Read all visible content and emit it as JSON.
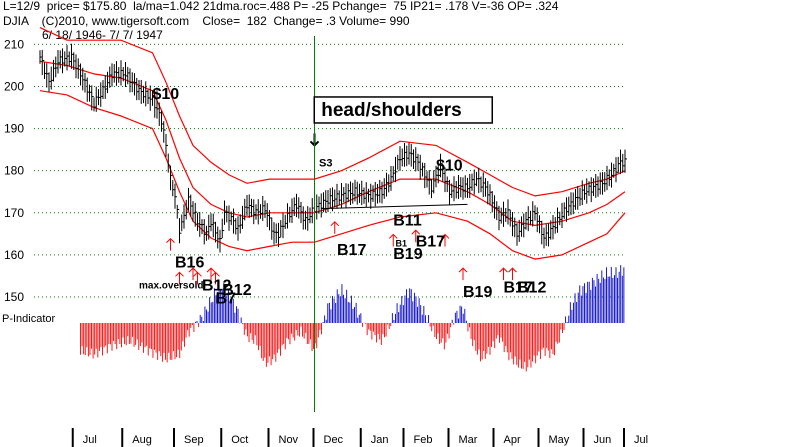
{
  "header": {
    "line1": "L=12/9  price= $175.80  la/ma=1.042 21dma.roc=.488 P= -25 Pchange=  75 IP21= .178 V=-36 OP= .324",
    "line2": "DJIA    (C)2010, www.tigersoft.com    Close=  182  Change= .3 Volume= 990",
    "line3": "6/ 18/ 1946- 7/ 7/ 1947"
  },
  "colors": {
    "price_bar": "#000000",
    "band": "#ff0000",
    "grid": "#008000",
    "marker_line": "#008000",
    "p_positive": "#0000cc",
    "p_negative": "#ff0000",
    "signal": "#000000",
    "buy_arrow": "#ff0000",
    "axis_tab": "#e8e8e8"
  },
  "chart_data": {
    "type": "line",
    "title": "DJIA",
    "x_range": [
      0,
      260
    ],
    "ylim": [
      145,
      212
    ],
    "y_ticks": [
      150,
      160,
      170,
      180,
      190,
      200,
      210
    ],
    "month_labels": [
      "Jul",
      "Aug",
      "Sep",
      "Oct",
      "Nov",
      "Dec",
      "Jan",
      "Feb",
      "Mar",
      "Apr",
      "May",
      "Jun",
      "Jul"
    ],
    "month_positions": [
      15,
      37,
      60,
      81,
      102,
      122,
      143,
      162,
      182,
      202,
      222,
      242,
      260
    ],
    "vline_x": 122,
    "series": [
      {
        "name": "DJIA close",
        "x": [
          0,
          4,
          8,
          14,
          18,
          24,
          28,
          32,
          38,
          44,
          50,
          54,
          56,
          58,
          60,
          62,
          64,
          66,
          70,
          74,
          76,
          80,
          82,
          86,
          88,
          92,
          96,
          100,
          104,
          106,
          110,
          114,
          118,
          122,
          128,
          134,
          140,
          146,
          152,
          156,
          160,
          164,
          168,
          170,
          174,
          178,
          182,
          186,
          190,
          194,
          198,
          200,
          204,
          208,
          212,
          216,
          220,
          224,
          226,
          230,
          234,
          238,
          242,
          246,
          250,
          254,
          258
        ],
        "values": [
          207,
          201,
          206,
          207,
          203,
          196,
          199,
          203,
          203,
          199,
          197,
          192,
          186,
          178,
          174,
          166,
          169,
          173,
          168,
          165,
          168,
          163,
          170,
          168,
          166,
          172,
          170,
          171,
          165,
          165,
          169,
          172,
          168,
          171,
          173,
          174,
          175,
          174,
          175,
          178,
          183,
          184,
          182,
          180,
          176,
          181,
          175,
          176,
          176,
          178,
          176,
          174,
          169,
          170,
          165,
          168,
          170,
          164,
          165,
          168,
          171,
          173,
          175,
          176,
          177,
          179,
          182
        ]
      },
      {
        "name": "upper band",
        "x": [
          0,
          12,
          24,
          36,
          50,
          56,
          62,
          68,
          76,
          84,
          92,
          102,
          112,
          122,
          134,
          146,
          160,
          176,
          190,
          200,
          210,
          220,
          232,
          244,
          252,
          260
        ],
        "values": [
          214,
          211,
          211,
          211,
          208,
          201,
          193,
          186,
          182,
          179,
          177,
          178,
          178,
          178,
          180,
          183,
          187,
          186,
          182,
          179,
          176,
          174,
          175,
          177,
          178,
          180
        ]
      },
      {
        "name": "moving average",
        "x": [
          0,
          12,
          24,
          36,
          50,
          56,
          62,
          68,
          76,
          84,
          92,
          102,
          112,
          122,
          134,
          146,
          160,
          176,
          190,
          200,
          210,
          220,
          232,
          244,
          252,
          260
        ],
        "values": [
          206,
          205,
          203,
          202,
          199,
          192,
          183,
          176,
          172,
          170,
          169,
          170,
          170,
          170,
          172,
          175,
          178,
          178,
          175,
          172,
          168,
          167,
          168,
          170,
          172,
          175
        ]
      },
      {
        "name": "lower band",
        "x": [
          0,
          12,
          24,
          36,
          50,
          56,
          62,
          68,
          76,
          84,
          92,
          102,
          112,
          122,
          134,
          146,
          160,
          176,
          190,
          200,
          210,
          220,
          232,
          244,
          252,
          260
        ],
        "values": [
          199,
          198,
          195,
          193,
          190,
          183,
          175,
          168,
          164,
          162,
          161,
          162,
          163,
          163,
          165,
          167,
          169,
          170,
          168,
          165,
          161,
          159,
          160,
          163,
          165,
          170
        ]
      }
    ],
    "neckline": {
      "x": [
        125,
        190
      ],
      "values": [
        171,
        172
      ]
    },
    "p_indicator": {
      "label": "P-Indicator",
      "x": [
        0,
        8,
        16,
        24,
        32,
        40,
        48,
        56,
        62,
        66,
        72,
        76,
        80,
        84,
        88,
        92,
        96,
        100,
        104,
        110,
        116,
        122,
        128,
        134,
        140,
        146,
        152,
        158,
        164,
        168,
        172,
        176,
        180,
        184,
        188,
        192,
        196,
        200,
        204,
        208,
        212,
        216,
        220,
        224,
        228,
        232,
        236,
        240,
        244,
        248,
        252,
        256,
        260
      ],
      "values": [
        -0.2,
        -0.5,
        -0.6,
        -0.7,
        -0.5,
        -0.4,
        -0.6,
        -0.8,
        -0.7,
        -0.2,
        0.1,
        0.4,
        0.7,
        0.5,
        0.2,
        -0.3,
        -0.4,
        -0.9,
        -0.8,
        -0.4,
        -0.2,
        -0.6,
        0.3,
        0.6,
        0.3,
        -0.2,
        -0.4,
        0.2,
        0.6,
        0.4,
        0.1,
        -0.3,
        -0.5,
        0.1,
        0.3,
        -0.4,
        -0.8,
        -0.6,
        -0.3,
        -0.7,
        -0.9,
        -1.0,
        -0.8,
        -0.6,
        -0.7,
        -0.2,
        0.3,
        0.6,
        0.7,
        0.8,
        0.9,
        0.9,
        1.0
      ]
    },
    "annotations": [
      {
        "text": "$10",
        "x": 50,
        "y": 197,
        "size": 16
      },
      {
        "text": "$10",
        "x": 176,
        "y": 180,
        "size": 16
      },
      {
        "text": "B16",
        "x": 60,
        "y": 157,
        "size": 16
      },
      {
        "text": "max.oversold",
        "x": 44,
        "y": 152,
        "size": 10
      },
      {
        "text": "B12",
        "x": 72,
        "y": 151.5,
        "size": 16
      },
      {
        "text": "B12",
        "x": 81,
        "y": 150.5,
        "size": 16
      },
      {
        "text": "B7",
        "x": 78,
        "y": 148.5,
        "size": 16
      },
      {
        "text": "S3",
        "x": 124,
        "y": 181,
        "size": 11
      },
      {
        "text": "B17",
        "x": 132,
        "y": 160,
        "size": 16
      },
      {
        "text": "B11",
        "x": 157,
        "y": 167,
        "size": 16
      },
      {
        "text": "B19",
        "x": 157,
        "y": 159,
        "size": 16
      },
      {
        "text": "B17",
        "x": 167,
        "y": 162,
        "size": 16
      },
      {
        "text": "B1",
        "x": 158,
        "y": 162,
        "size": 9
      },
      {
        "text": "B19",
        "x": 188,
        "y": 150,
        "size": 16
      },
      {
        "text": "B17",
        "x": 206,
        "y": 151,
        "size": 16
      },
      {
        "text": "B12",
        "x": 212,
        "y": 151,
        "size": 16
      }
    ],
    "buy_arrows": [
      {
        "x": 58,
        "y": 161
      },
      {
        "x": 62,
        "y": 153
      },
      {
        "x": 68,
        "y": 154
      },
      {
        "x": 70,
        "y": 153
      },
      {
        "x": 76,
        "y": 154
      },
      {
        "x": 78,
        "y": 153
      },
      {
        "x": 131,
        "y": 165
      },
      {
        "x": 157,
        "y": 162
      },
      {
        "x": 167,
        "y": 163
      },
      {
        "x": 180,
        "y": 162
      },
      {
        "x": 188,
        "y": 154
      },
      {
        "x": 206,
        "y": 154
      },
      {
        "x": 210,
        "y": 154
      }
    ],
    "sell_arrow": {
      "x": 122,
      "y": 186
    },
    "callout": {
      "text": "head/shoulders",
      "x": 125,
      "y": 193
    }
  }
}
